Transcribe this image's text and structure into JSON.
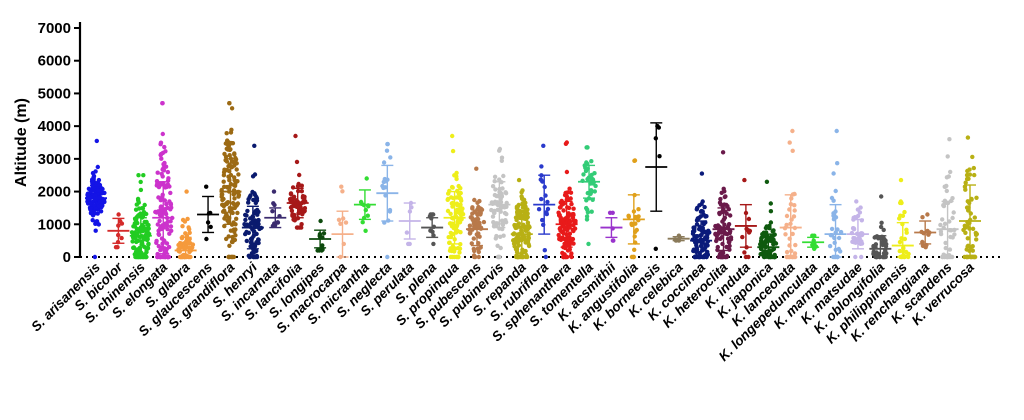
{
  "chart_data": {
    "type": "scatter",
    "title": "",
    "xlabel": "",
    "ylabel": "Altitude (m)",
    "ylim": [
      0,
      7000
    ],
    "yticks": [
      0,
      1000,
      2000,
      3000,
      4000,
      5000,
      6000,
      7000
    ],
    "ytick_labels": [
      "0",
      "1000",
      "2000",
      "3000",
      "4000",
      "5000",
      "6000",
      "7000"
    ],
    "reference_line": {
      "y": 0,
      "style": "dotted"
    },
    "series": [
      {
        "name": "S. arisanensis",
        "color": "#1414e6",
        "n": 140,
        "min": 0,
        "max": 3550,
        "mean": 1800,
        "sd": 380
      },
      {
        "name": "S. bicolor",
        "color": "#d42a2a",
        "n": 9,
        "min": 300,
        "max": 1300,
        "mean": 800,
        "sd": 380
      },
      {
        "name": "S. chinensis",
        "color": "#22cc22",
        "n": 130,
        "min": 0,
        "max": 2500,
        "mean": 650,
        "sd": 550
      },
      {
        "name": "S. elongata",
        "color": "#cc33cc",
        "n": 130,
        "min": 0,
        "max": 4700,
        "mean": 1200,
        "sd": 1100
      },
      {
        "name": "S. glabra",
        "color": "#f59a3c",
        "n": 60,
        "min": 0,
        "max": 2000,
        "mean": 200,
        "sd": 400
      },
      {
        "name": "S. glaucescens",
        "color": "#000000",
        "n": 6,
        "min": 550,
        "max": 2150,
        "mean": 1300,
        "sd": 550
      },
      {
        "name": "S. grandiflora",
        "color": "#9c6a14",
        "n": 130,
        "min": 0,
        "max": 4700,
        "mean": 2000,
        "sd": 1000
      },
      {
        "name": "S. henryi",
        "color": "#0a1a6e",
        "n": 80,
        "min": 0,
        "max": 3400,
        "mean": 900,
        "sd": 650
      },
      {
        "name": "S. incarnata",
        "color": "#3a2a6e",
        "n": 10,
        "min": 950,
        "max": 2000,
        "mean": 1200,
        "sd": 300
      },
      {
        "name": "S. lancifolia",
        "color": "#a61818",
        "n": 60,
        "min": 900,
        "max": 3700,
        "mean": 1650,
        "sd": 450
      },
      {
        "name": "S. longipes",
        "color": "#0d4a0d",
        "n": 12,
        "min": 200,
        "max": 1100,
        "mean": 550,
        "sd": 270
      },
      {
        "name": "S. macrocarpa",
        "color": "#f5b08a",
        "n": 8,
        "min": 0,
        "max": 2150,
        "mean": 700,
        "sd": 700
      },
      {
        "name": "S. micrantha",
        "color": "#33dd33",
        "n": 11,
        "min": 800,
        "max": 2400,
        "mean": 1600,
        "sd": 450
      },
      {
        "name": "S. neglecta",
        "color": "#8ab4e8",
        "n": 18,
        "min": 0,
        "max": 3450,
        "mean": 1950,
        "sd": 850
      },
      {
        "name": "S. perulata",
        "color": "#c4b4e8",
        "n": 6,
        "min": 400,
        "max": 1650,
        "mean": 1100,
        "sd": 550
      },
      {
        "name": "S. plena",
        "color": "#555555",
        "n": 10,
        "min": 400,
        "max": 1300,
        "mean": 900,
        "sd": 300
      },
      {
        "name": "S. propinqua",
        "color": "#eeee1a",
        "n": 90,
        "min": 0,
        "max": 3700,
        "mean": 1200,
        "sd": 800
      },
      {
        "name": "S. pubescens",
        "color": "#b8794a",
        "n": 60,
        "min": 0,
        "max": 2700,
        "mean": 850,
        "sd": 500
      },
      {
        "name": "S. pubinervis",
        "color": "#c4c4c4",
        "n": 70,
        "min": 0,
        "max": 3300,
        "mean": 1600,
        "sd": 700
      },
      {
        "name": "S. repanda",
        "color": "#b8b014",
        "n": 130,
        "min": 0,
        "max": 2350,
        "mean": 700,
        "sd": 600
      },
      {
        "name": "S. rubriflora",
        "color": "#2a3acc",
        "n": 18,
        "min": 0,
        "max": 3400,
        "mean": 1600,
        "sd": 900
      },
      {
        "name": "S. sphenanthera",
        "color": "#e81a1a",
        "n": 110,
        "min": 0,
        "max": 3500,
        "mean": 1000,
        "sd": 700
      },
      {
        "name": "S. tomentella",
        "color": "#33cc77",
        "n": 40,
        "min": 400,
        "max": 3350,
        "mean": 2300,
        "sd": 500
      },
      {
        "name": "K. acsmithii",
        "color": "#9933cc",
        "n": 5,
        "min": 500,
        "max": 1350,
        "mean": 900,
        "sd": 300
      },
      {
        "name": "K. angustifolia",
        "color": "#e0a01a",
        "n": 22,
        "min": 0,
        "max": 2950,
        "mean": 1150,
        "sd": 750
      },
      {
        "name": "K. borneensis",
        "color": "#000000",
        "n": 5,
        "min": 250,
        "max": 4000,
        "mean": 2750,
        "sd": 1350
      },
      {
        "name": "K. celebica",
        "color": "#8a7a5a",
        "n": 5,
        "min": 500,
        "max": 650,
        "mean": 560,
        "sd": 60
      },
      {
        "name": "K. coccinea",
        "color": "#0a1a7a",
        "n": 100,
        "min": 0,
        "max": 2550,
        "mean": 500,
        "sd": 600
      },
      {
        "name": "K. heteroclita",
        "color": "#6a1a4a",
        "n": 80,
        "min": 0,
        "max": 3200,
        "mean": 850,
        "sd": 650
      },
      {
        "name": "K. induta",
        "color": "#a61818",
        "n": 12,
        "min": 0,
        "max": 2350,
        "mean": 950,
        "sd": 650
      },
      {
        "name": "K. japonica",
        "color": "#0f5a0f",
        "n": 90,
        "min": 0,
        "max": 2300,
        "mean": 300,
        "sd": 400
      },
      {
        "name": "K. lanceolata",
        "color": "#f5b08a",
        "n": 35,
        "min": 0,
        "max": 3850,
        "mean": 900,
        "sd": 1000
      },
      {
        "name": "K. longepedunculata",
        "color": "#33dd33",
        "n": 8,
        "min": 250,
        "max": 650,
        "mean": 450,
        "sd": 150
      },
      {
        "name": "K. marmorata",
        "color": "#8ab4e8",
        "n": 30,
        "min": 0,
        "max": 3850,
        "mean": 700,
        "sd": 900
      },
      {
        "name": "K. matsudae",
        "color": "#c4b4e8",
        "n": 35,
        "min": 0,
        "max": 1700,
        "mean": 700,
        "sd": 450
      },
      {
        "name": "K. oblongifolia",
        "color": "#555555",
        "n": 50,
        "min": 0,
        "max": 1850,
        "mean": 250,
        "sd": 400
      },
      {
        "name": "K. philippinensis",
        "color": "#eeee1a",
        "n": 30,
        "min": 0,
        "max": 2350,
        "mean": 350,
        "sd": 700
      },
      {
        "name": "K. renchangiana",
        "color": "#b8794a",
        "n": 12,
        "min": 300,
        "max": 1300,
        "mean": 750,
        "sd": 350
      },
      {
        "name": "K. scandens",
        "color": "#c4c4c4",
        "n": 50,
        "min": 0,
        "max": 3600,
        "mean": 850,
        "sd": 850
      },
      {
        "name": "K. verrucosa",
        "color": "#b8b014",
        "n": 60,
        "min": 0,
        "max": 3650,
        "mean": 1100,
        "sd": 1100
      }
    ]
  }
}
